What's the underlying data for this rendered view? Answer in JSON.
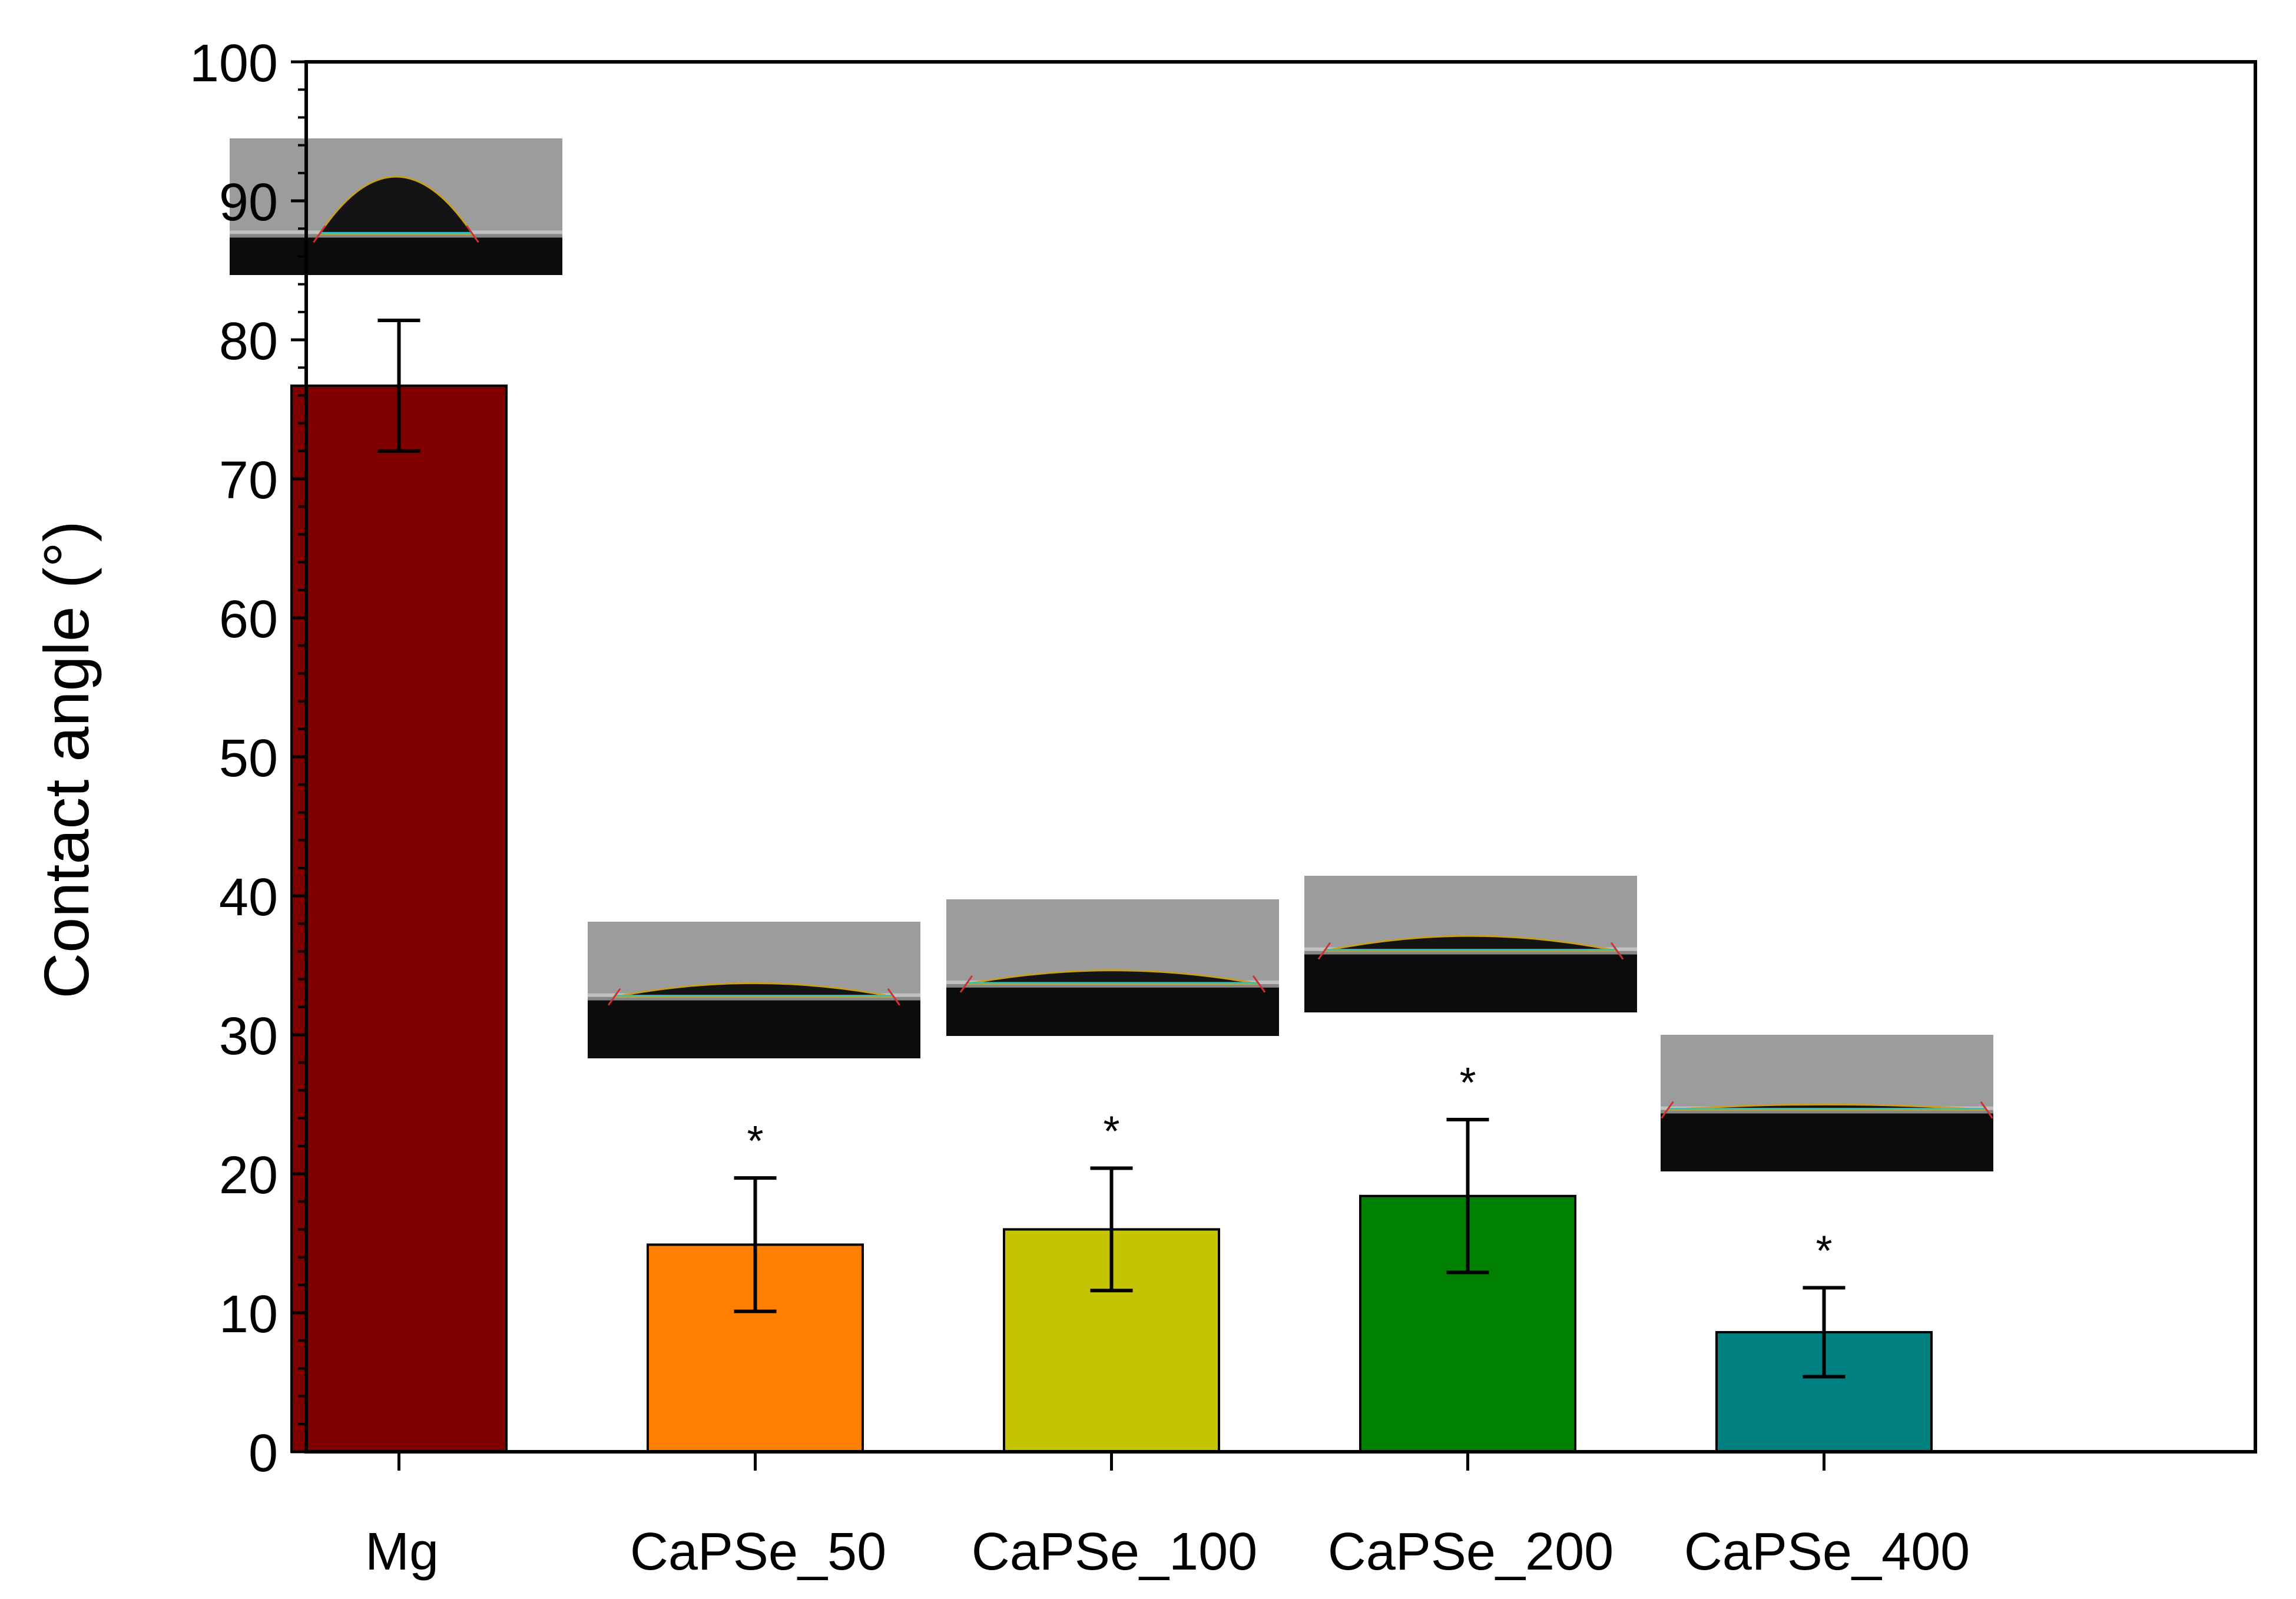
{
  "chart_data": {
    "type": "bar",
    "title": "",
    "xlabel": "",
    "ylabel": "Contact angle (°)",
    "ylim": [
      0,
      100
    ],
    "yticks": [
      0,
      10,
      20,
      30,
      40,
      50,
      60,
      70,
      80,
      90,
      100
    ],
    "categories": [
      "Mg",
      "CaPSe_50",
      "CaPSe_100",
      "CaPSe_200",
      "CaPSe_400"
    ],
    "values": [
      76.7,
      14.9,
      16.0,
      18.4,
      8.6
    ],
    "errors": [
      4.7,
      4.8,
      4.4,
      5.5,
      3.2
    ],
    "significance": [
      "",
      "*",
      "*",
      "*",
      "*"
    ],
    "colors": [
      "#800000",
      "#ff8000",
      "#c4c400",
      "#008000",
      "#008080"
    ],
    "insets": "droplet-photo",
    "grid": false,
    "legend": "none"
  }
}
